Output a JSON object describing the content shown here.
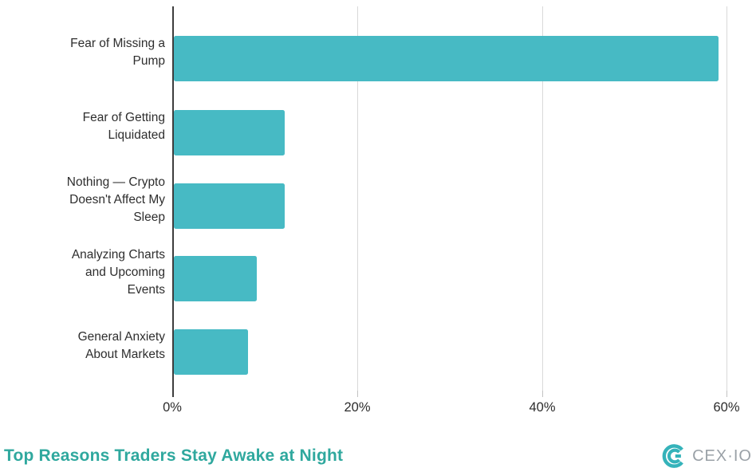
{
  "chart_data": {
    "type": "bar",
    "orientation": "horizontal",
    "title": "Top Reasons Traders Stay Awake at Night",
    "categories": [
      "Fear of Missing a Pump",
      "Fear of Getting Liquidated",
      "Nothing — Crypto Doesn't Affect My Sleep",
      "Analyzing Charts and Upcoming Events",
      "General Anxiety About Markets"
    ],
    "label_lines": [
      "Fear of Missing a\nPump",
      "Fear of Getting\nLiquidated",
      "Nothing — Crypto\nDoesn't Affect My\nSleep",
      "Analyzing Charts\nand Upcoming\nEvents",
      "General Anxiety\nAbout Markets"
    ],
    "values": [
      59,
      12,
      12,
      9,
      8
    ],
    "unit": "%",
    "xlabel": "",
    "ylabel": "",
    "xlim": [
      0,
      60
    ],
    "x_ticks": [
      "0%",
      "20%",
      "40%",
      "60%"
    ],
    "grid": true,
    "legend": false,
    "bar_color": "#47bac4"
  },
  "footer": {
    "brand": "CEX·IO",
    "title_color": "#2fa89e",
    "brand_text_color": "#9aa1a7",
    "brand_icon_color": "#35b3ba"
  }
}
